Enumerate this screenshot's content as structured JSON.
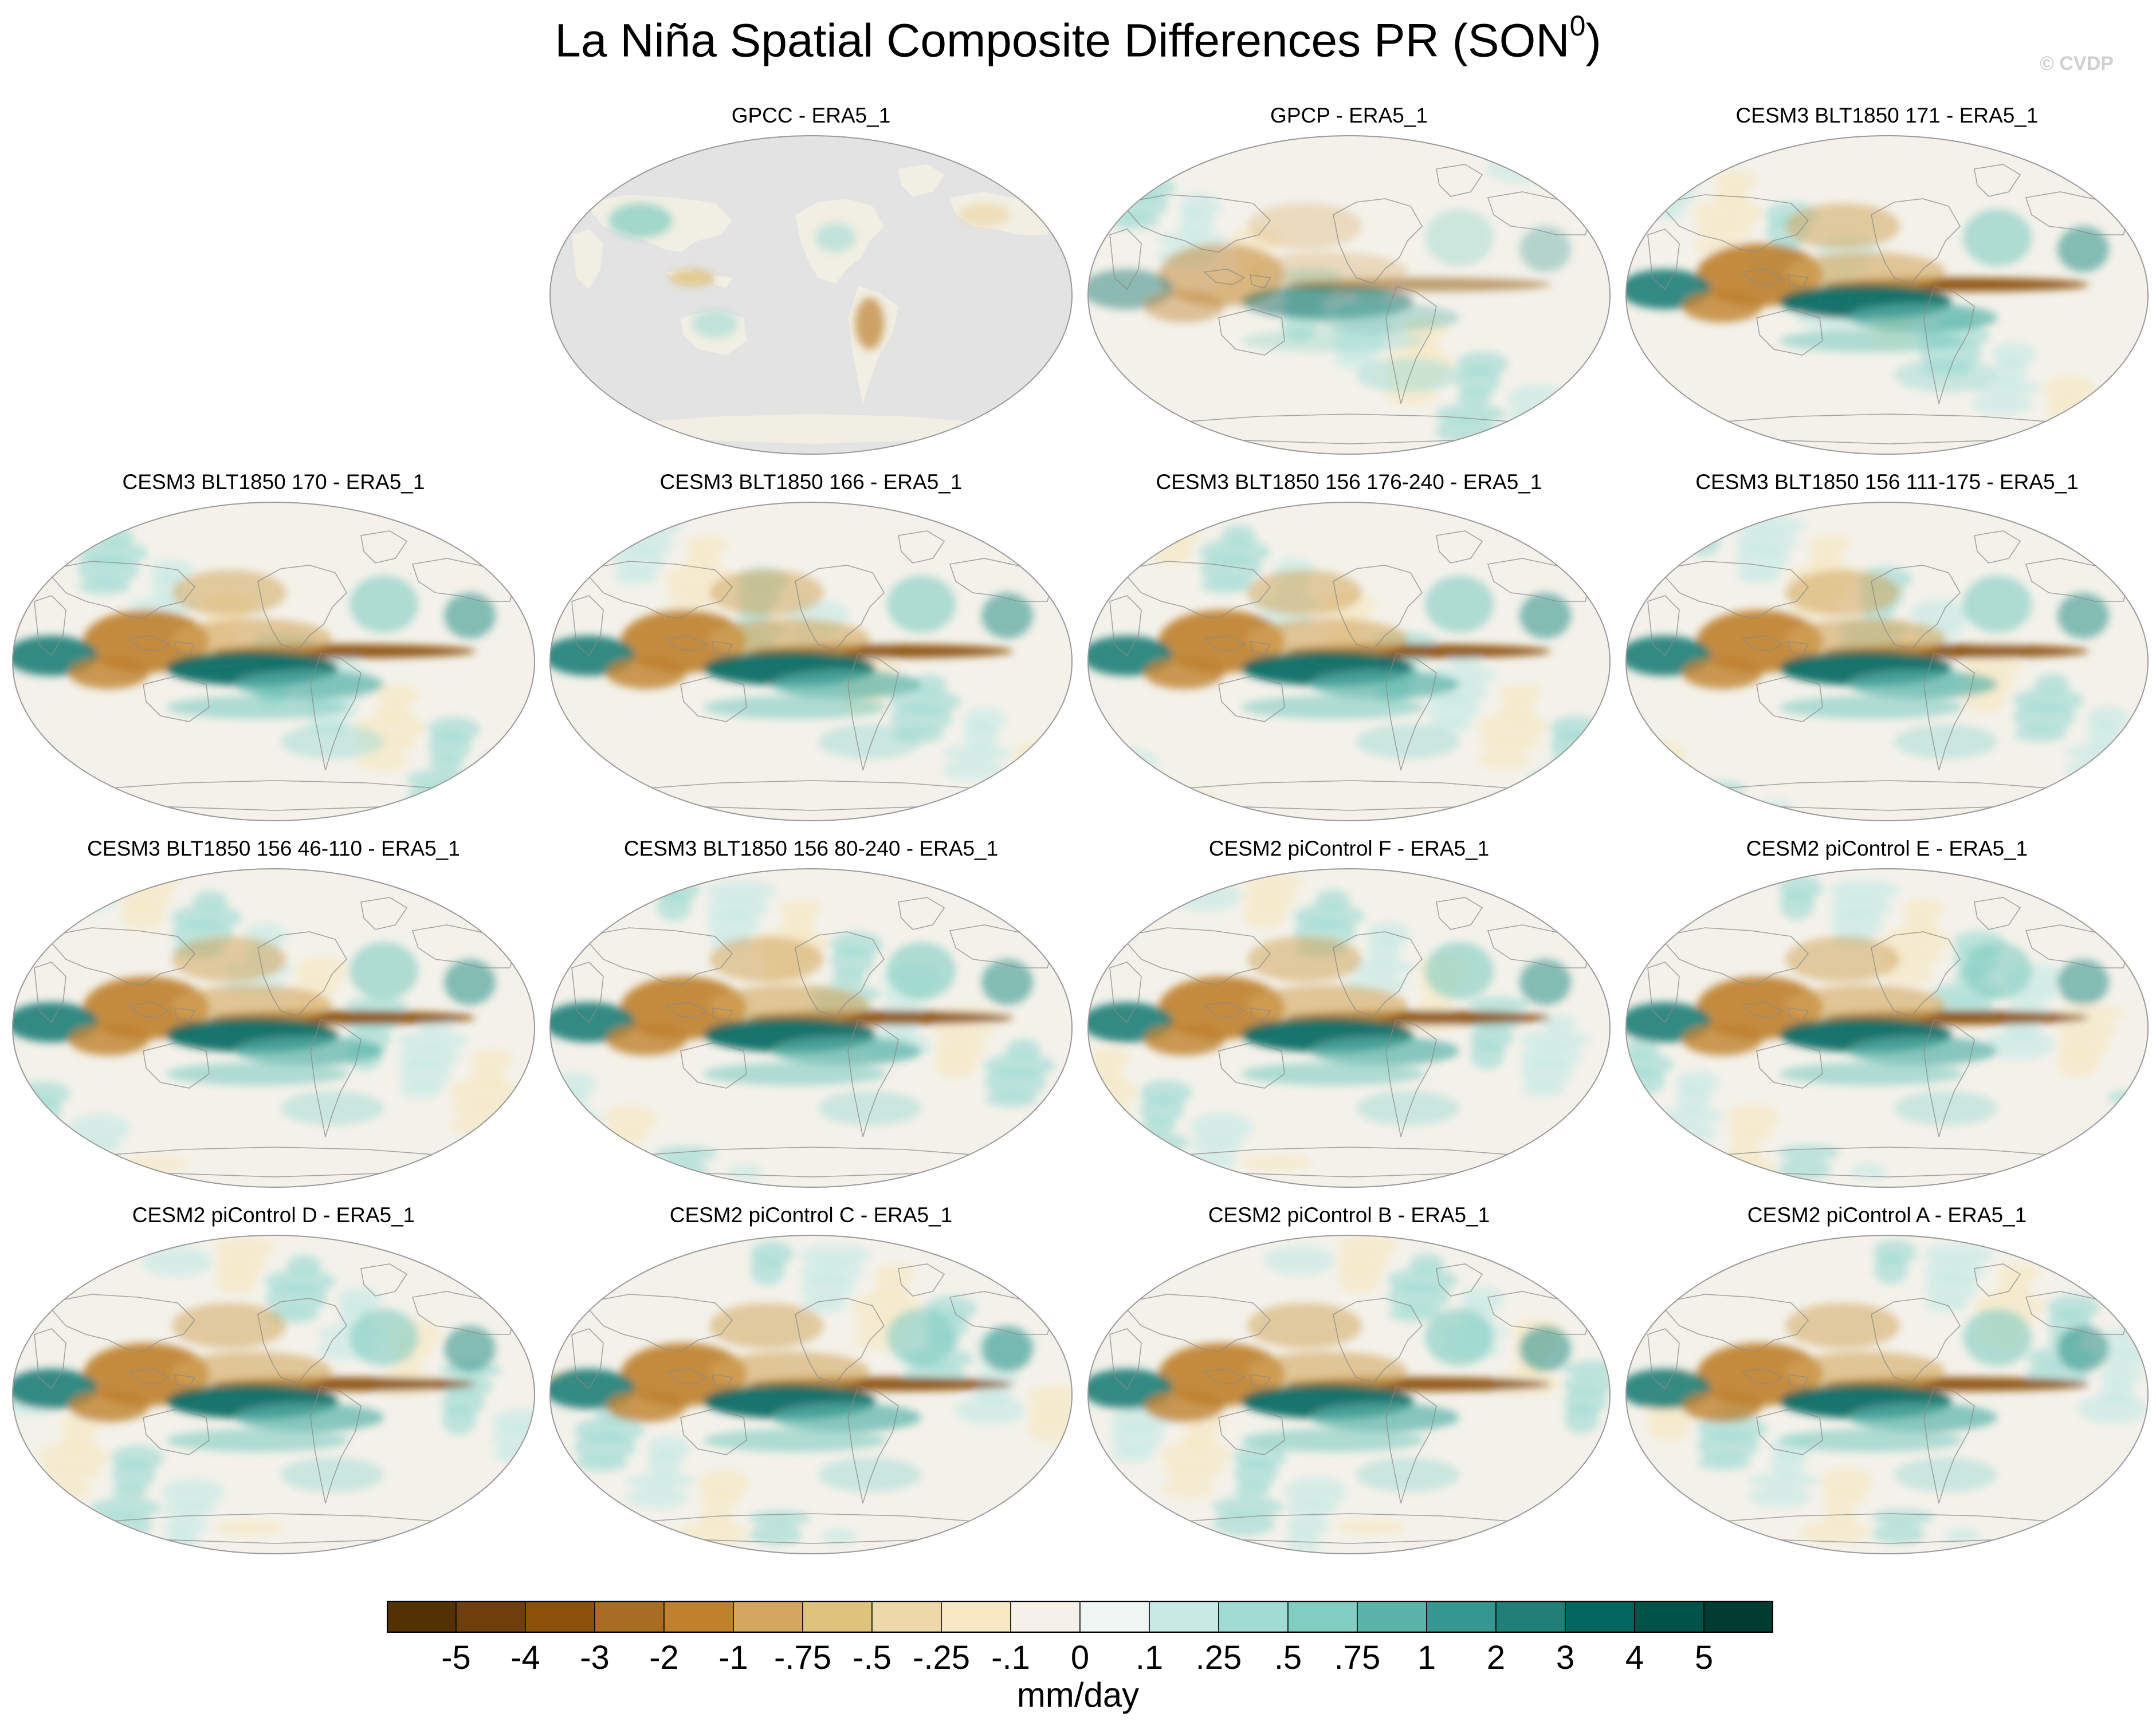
{
  "title": "La Niña Spatial Composite Differences PR (SON",
  "title_superscript": "0",
  "title_suffix": ")",
  "credit": "© CVDP",
  "chart_data": {
    "type": "heatmap",
    "projection": "Robinson (global maps)",
    "variable": "PR",
    "season": "SON0",
    "colorbar": {
      "levels": [
        "-5",
        "-4",
        "-3",
        "-2",
        "-1",
        "-.75",
        "-.5",
        "-.25",
        "-.1",
        "0",
        ".1",
        ".25",
        ".5",
        ".75",
        "1",
        "2",
        "3",
        "4",
        "5"
      ],
      "colors": [
        "#543005",
        "#6e3f0c",
        "#8c510a",
        "#a76d23",
        "#bf812d",
        "#d3a75e",
        "#dfc27d",
        "#ecd8a8",
        "#f6e8c3",
        "#f5f1e8",
        "#eef5f2",
        "#c7eae5",
        "#a1dcd4",
        "#80cdc1",
        "#5ab4a9",
        "#35978f",
        "#208078",
        "#01665e",
        "#015248",
        "#003c30"
      ],
      "units": "mm/day"
    },
    "panels": [
      {
        "title": "GPCC - ERA5_1",
        "land_only": true
      },
      {
        "title": "GPCP - ERA5_1",
        "land_only": false
      },
      {
        "title": "CESM3 BLT1850 171 - ERA5_1",
        "land_only": false
      },
      {
        "title": "CESM3 BLT1850 170 - ERA5_1",
        "land_only": false
      },
      {
        "title": "CESM3 BLT1850 166 - ERA5_1",
        "land_only": false
      },
      {
        "title": "CESM3 BLT1850 156 176-240 - ERA5_1",
        "land_only": false
      },
      {
        "title": "CESM3 BLT1850 156 111-175 - ERA5_1",
        "land_only": false
      },
      {
        "title": "CESM3 BLT1850 156 46-110 - ERA5_1",
        "land_only": false
      },
      {
        "title": "CESM3 BLT1850 156 80-240 - ERA5_1",
        "land_only": false
      },
      {
        "title": "CESM2 piControl F - ERA5_1",
        "land_only": false
      },
      {
        "title": "CESM2 piControl E - ERA5_1",
        "land_only": false
      },
      {
        "title": "CESM2 piControl D - ERA5_1",
        "land_only": false
      },
      {
        "title": "CESM2 piControl C - ERA5_1",
        "land_only": false
      },
      {
        "title": "CESM2 piControl B - ERA5_1",
        "land_only": false
      },
      {
        "title": "CESM2 piControl A - ERA5_1",
        "land_only": false
      }
    ]
  }
}
